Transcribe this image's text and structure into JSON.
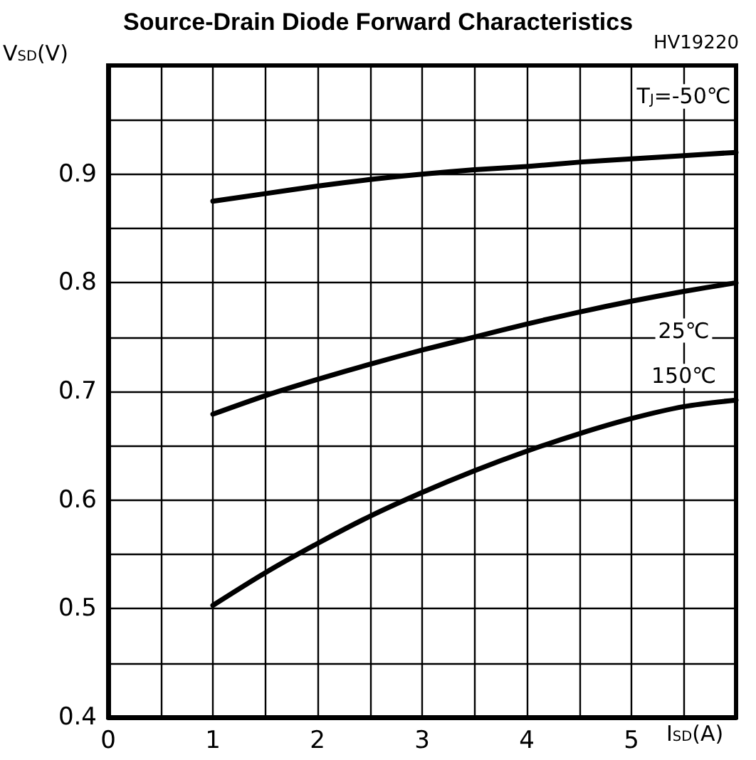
{
  "chart_data": {
    "type": "line",
    "title": "Source-Drain Diode Forward Characteristics",
    "xlabel": "I$_{SD}$(A)",
    "ylabel": "V$_{SD}$(V)",
    "annotations": [
      "HV19220"
    ],
    "x": [
      1,
      1.5,
      2,
      2.5,
      3,
      3.5,
      4,
      4.5,
      5,
      5.5,
      6
    ],
    "series": [
      {
        "name": "T$_{J}$=-50℃",
        "color": "#000000",
        "values": [
          0.875,
          0.882,
          0.889,
          0.895,
          0.9,
          0.904,
          0.907,
          0.911,
          0.914,
          0.917,
          0.92
        ]
      },
      {
        "name": "25℃",
        "color": "#000000",
        "values": [
          0.679,
          0.696,
          0.711,
          0.725,
          0.738,
          0.75,
          0.762,
          0.773,
          0.783,
          0.792,
          0.8
        ]
      },
      {
        "name": "150℃",
        "color": "#000000",
        "values": [
          0.503,
          0.533,
          0.56,
          0.585,
          0.607,
          0.627,
          0.645,
          0.661,
          0.675,
          0.686,
          0.692
        ]
      }
    ],
    "xlim": [
      0,
      6
    ],
    "xticks": [
      0,
      {
        "value": 0.5,
        "label": null
      },
      1,
      {
        "value": 1.5,
        "label": null
      },
      2,
      {
        "value": 2.5,
        "label": null
      },
      3,
      {
        "value": 3.5,
        "label": null
      },
      4,
      {
        "value": 4.5,
        "label": null
      },
      5,
      {
        "value": 5.5,
        "label": null
      },
      {
        "value": 6,
        "label": null
      }
    ],
    "ylim": [
      0.4,
      1.0
    ],
    "yticks": [
      0.4,
      {
        "value": 0.45,
        "label": null
      },
      0.5,
      {
        "value": 0.55,
        "label": null
      },
      0.6,
      {
        "value": 0.65,
        "label": null
      },
      0.7,
      {
        "value": 0.75,
        "label": null
      },
      0.8,
      {
        "value": 0.85,
        "label": null
      },
      0.9,
      {
        "value": 0.95,
        "label": null
      },
      {
        "value": 1.0,
        "label": null
      }
    ],
    "grid": true,
    "legend": false,
    "marker": "none",
    "line_style": "solid"
  }
}
